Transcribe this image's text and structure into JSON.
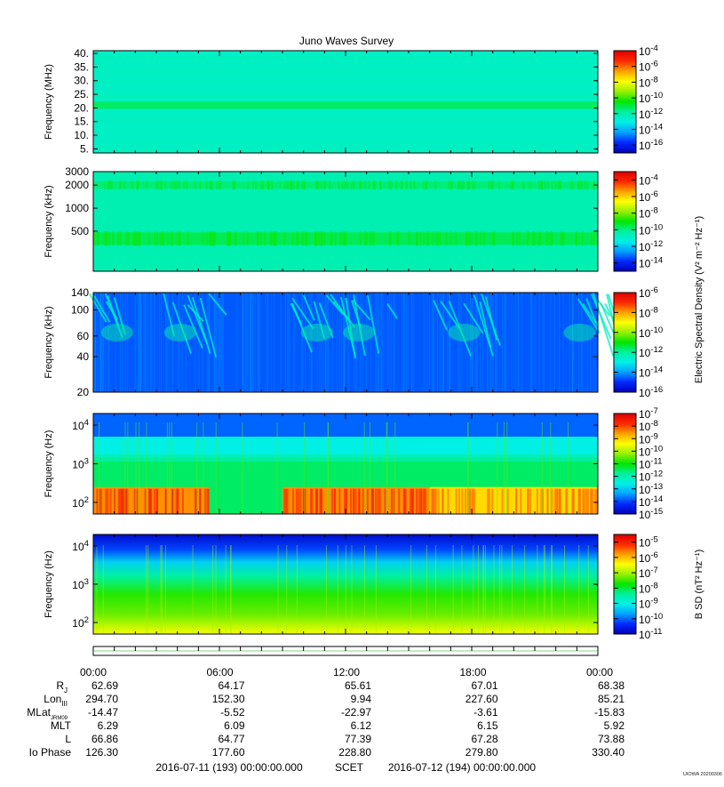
{
  "title": "Juno Waves Survey",
  "stamp": "UIOWA 20200306",
  "colormap": [
    "#0000b4",
    "#0028ff",
    "#00a0ff",
    "#00f0e6",
    "#00f0a0",
    "#00e600",
    "#96f000",
    "#ffff00",
    "#ffa000",
    "#ff2800",
    "#dc0000"
  ],
  "chart_data": [
    {
      "type": "heatmap",
      "panel": "hfwbr",
      "ylabel": "Frequency (MHz)",
      "yscale": "linear",
      "ylim": [
        3.5,
        41
      ],
      "yticks": [
        "5.",
        "10.",
        "15.",
        "20.",
        "25.",
        "30.",
        "35.",
        "40."
      ],
      "yticks_values": [
        5,
        10,
        15,
        20,
        25,
        30,
        35,
        40
      ],
      "colorbar": {
        "label": "Electric Spectral Density",
        "scale": "log",
        "range_exp": [
          -17,
          -4
        ],
        "ticks": [
          {
            "base": "10",
            "exp": "-4"
          },
          {
            "base": "10",
            "exp": "-6"
          },
          {
            "base": "10",
            "exp": "-8"
          },
          {
            "base": "10",
            "exp": "-10"
          },
          {
            "base": "10",
            "exp": "-12"
          },
          {
            "base": "10",
            "exp": "-14"
          },
          {
            "base": "10",
            "exp": "-16"
          }
        ],
        "ticks_values": [
          -4,
          -6,
          -8,
          -10,
          -12,
          -14,
          -16
        ]
      },
      "background_exp": -12.5,
      "features": [
        {
          "description": "narrowband emission",
          "freq": 21,
          "exp": -11.3
        }
      ]
    },
    {
      "type": "heatmap",
      "panel": "hfr",
      "ylabel": "Frequency (kHz)",
      "yscale": "log",
      "ylim": [
        150,
        3000
      ],
      "yticks": [
        "3000",
        "2000",
        "1000",
        "500"
      ],
      "yticks_values": [
        3000,
        2000,
        1000,
        500
      ],
      "colorbar": {
        "label": "Electric Spectral Density (V² m⁻² Hz⁻¹)",
        "scale": "log",
        "range_exp": [
          -15,
          -3
        ],
        "ticks": [
          {
            "base": "10",
            "exp": "-4"
          },
          {
            "base": "10",
            "exp": "-6"
          },
          {
            "base": "10",
            "exp": "-8"
          },
          {
            "base": "10",
            "exp": "-10"
          },
          {
            "base": "10",
            "exp": "-12"
          },
          {
            "base": "10",
            "exp": "-14"
          }
        ],
        "ticks_values": [
          -4,
          -6,
          -8,
          -10,
          -12,
          -14
        ]
      },
      "background_exp": -10.5,
      "features": [
        {
          "freq": 400,
          "exp": -9.5
        },
        {
          "freq": 2000,
          "exp": -9.8
        }
      ]
    },
    {
      "type": "heatmap",
      "panel": "lfr-high",
      "ylabel": "Frequency (kHz)",
      "yscale": "log",
      "ylim": [
        20,
        140
      ],
      "yticks": [
        "140",
        "100",
        "60",
        "40",
        "20"
      ],
      "yticks_values": [
        140,
        100,
        60,
        40,
        20
      ],
      "colorbar": {
        "label": "Electric Spectral Density",
        "scale": "log",
        "range_exp": [
          -16,
          -6
        ],
        "ticks": [
          {
            "base": "10",
            "exp": "-6"
          },
          {
            "base": "10",
            "exp": "-8"
          },
          {
            "base": "10",
            "exp": "-10"
          },
          {
            "base": "10",
            "exp": "-12"
          },
          {
            "base": "10",
            "exp": "-14"
          },
          {
            "base": "10",
            "exp": "-16"
          }
        ],
        "ticks_values": [
          -6,
          -8,
          -10,
          -12,
          -14,
          -16
        ]
      },
      "background_exp": -14.6,
      "features": [
        {
          "description": "bursty emissions",
          "hours": [
            0.5,
            3.5,
            10,
            12,
            17,
            22.5
          ],
          "exp": -12.5
        }
      ]
    },
    {
      "type": "heatmap",
      "panel": "lfr-low",
      "ylabel": "Frequency (Hz)",
      "yscale": "log",
      "ylim": [
        50,
        20000
      ],
      "yticks": [
        {
          "base": "10",
          "exp": "4"
        },
        {
          "base": "10",
          "exp": "3"
        },
        {
          "base": "10",
          "exp": "2"
        }
      ],
      "yticks_values": [
        10000,
        1000,
        100
      ],
      "colorbar": {
        "label": "",
        "scale": "log",
        "range_exp": [
          -15,
          -7
        ],
        "ticks": [
          {
            "base": "10",
            "exp": "-7"
          },
          {
            "base": "10",
            "exp": "-8"
          },
          {
            "base": "10",
            "exp": "-9"
          },
          {
            "base": "10",
            "exp": "-10"
          },
          {
            "base": "10",
            "exp": "-11"
          },
          {
            "base": "10",
            "exp": "-12"
          },
          {
            "base": "10",
            "exp": "-13"
          },
          {
            "base": "10",
            "exp": "-14"
          },
          {
            "base": "10",
            "exp": "-15"
          }
        ],
        "ticks_values": [
          -7,
          -8,
          -9,
          -10,
          -11,
          -12,
          -13,
          -14,
          -15
        ]
      },
      "background_exp": -11.5,
      "features": [
        {
          "description": "intense low-frequency emission",
          "freq_range": [
            60,
            250
          ],
          "hour_ranges": [
            [
              0,
              5.5
            ],
            [
              9,
              16
            ],
            [
              16,
              24
            ]
          ],
          "exp": -8.5
        }
      ]
    },
    {
      "type": "heatmap",
      "panel": "magnetic",
      "ylabel": "Frequency (Hz)",
      "yscale": "log",
      "ylim": [
        50,
        20000
      ],
      "yticks": [
        {
          "base": "10",
          "exp": "4"
        },
        {
          "base": "10",
          "exp": "3"
        },
        {
          "base": "10",
          "exp": "2"
        }
      ],
      "yticks_values": [
        10000,
        1000,
        100
      ],
      "colorbar": {
        "label": "B SD (nT² Hz⁻¹)",
        "scale": "log",
        "range_exp": [
          -11,
          -4.5
        ],
        "ticks": [
          {
            "base": "10",
            "exp": "-5"
          },
          {
            "base": "10",
            "exp": "-6"
          },
          {
            "base": "10",
            "exp": "-7"
          },
          {
            "base": "10",
            "exp": "-8"
          },
          {
            "base": "10",
            "exp": "-9"
          },
          {
            "base": "10",
            "exp": "-10"
          },
          {
            "base": "10",
            "exp": "-11"
          }
        ],
        "ticks_values": [
          -5,
          -6,
          -7,
          -8,
          -9,
          -10,
          -11
        ]
      },
      "background_exp": -7.5,
      "features": []
    }
  ],
  "time_axis": {
    "hours": [
      0,
      6,
      12,
      18,
      24
    ],
    "labels": [
      "00:00",
      "06:00",
      "12:00",
      "18:00",
      "00:00"
    ],
    "rows": [
      {
        "label": "R",
        "sub": "J",
        "values": [
          "62.69",
          "64.17",
          "65.61",
          "67.01",
          "68.38"
        ]
      },
      {
        "label": "Lon",
        "sub": "III",
        "values": [
          "294.70",
          "152.30",
          "9.94",
          "227.60",
          "85.21"
        ]
      },
      {
        "label": "MLat",
        "sub": "JRM09",
        "values": [
          "-14.47",
          "-5.52",
          "-22.97",
          "-3.61",
          "-15.83"
        ]
      },
      {
        "label": "MLT",
        "sub": "",
        "values": [
          "6.29",
          "6.09",
          "6.12",
          "6.15",
          "5.92"
        ]
      },
      {
        "label": "L",
        "sub": "",
        "values": [
          "66.86",
          "64.77",
          "77.39",
          "67.28",
          "73.88"
        ]
      },
      {
        "label": "Io Phase",
        "sub": "",
        "values": [
          "126.30",
          "177.60",
          "228.80",
          "279.80",
          "330.40"
        ]
      }
    ],
    "footer": {
      "start": "2016-07-11 (193) 00:00:00.000",
      "scet": "SCET",
      "end": "2016-07-12 (194) 00:00:00.000"
    }
  }
}
